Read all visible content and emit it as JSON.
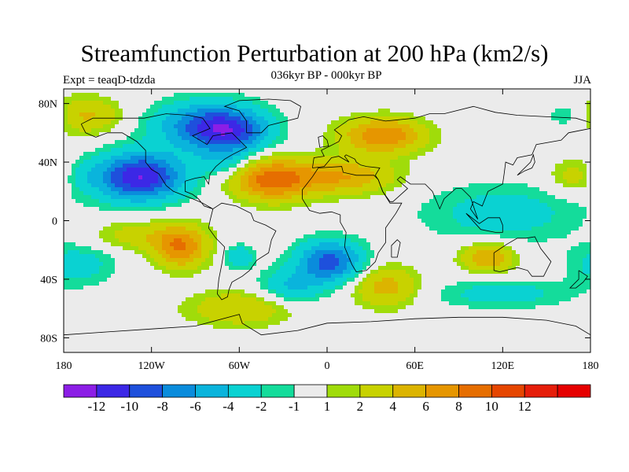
{
  "header": {
    "title": "Streamfunction Perturbation at 200 hPa (km2/s)",
    "subtitle": "036kyr BP - 000kyr BP",
    "left_string": "Expt = teaqD-tdzda",
    "right_string": "JJA"
  },
  "axes": {
    "y_ticks": [
      {
        "label": "80N",
        "lat": 80
      },
      {
        "label": "40N",
        "lat": 40
      },
      {
        "label": "0",
        "lat": 0
      },
      {
        "label": "40S",
        "lat": -40
      },
      {
        "label": "80S",
        "lat": -80
      }
    ],
    "x_ticks": [
      {
        "label": "180",
        "lon": -180
      },
      {
        "label": "120W",
        "lon": -120
      },
      {
        "label": "60W",
        "lon": -60
      },
      {
        "label": "0",
        "lon": 0
      },
      {
        "label": "60E",
        "lon": 60
      },
      {
        "label": "120E",
        "lon": 120
      },
      {
        "label": "180",
        "lon": 180
      }
    ]
  },
  "colorbar": {
    "colors": [
      "#8c1ee6",
      "#3c28e6",
      "#1e50dc",
      "#0a8cdc",
      "#0ab4dc",
      "#0ad2d2",
      "#14dc9b",
      "#ebebeb",
      "#a0dc0a",
      "#c8d200",
      "#dcb400",
      "#e69600",
      "#e66e00",
      "#e64600",
      "#e61e0a",
      "#e60000"
    ],
    "labels": [
      "-12",
      "-10",
      "-8",
      "-6",
      "-4",
      "-2",
      "-1",
      "1",
      "2",
      "4",
      "6",
      "8",
      "10",
      "12"
    ]
  },
  "chart_data": {
    "type": "heatmap",
    "variable": "Streamfunction perturbation at 200 hPa",
    "units": "km2/s",
    "projection": "cylindrical equidistant",
    "lon_range": [
      -180,
      180
    ],
    "lat_range": [
      -90,
      90
    ],
    "contour_levels": [
      -12,
      -10,
      -8,
      -6,
      -4,
      -2,
      -1,
      1,
      2,
      4,
      6,
      8,
      10,
      12
    ],
    "anomaly_centers": [
      {
        "lon": -128,
        "lat": 30,
        "value": -12,
        "rx": 30,
        "ry": 16
      },
      {
        "lon": -82,
        "lat": 65,
        "value": -8,
        "rx": 35,
        "ry": 16
      },
      {
        "lon": -65,
        "lat": 60,
        "value": -6,
        "rx": 25,
        "ry": 14
      },
      {
        "lon": -70,
        "lat": 40,
        "value": -3,
        "rx": 18,
        "ry": 10
      },
      {
        "lon": -38,
        "lat": 28,
        "value": 9,
        "rx": 26,
        "ry": 14
      },
      {
        "lon": 38,
        "lat": 58,
        "value": 8,
        "rx": 28,
        "ry": 12
      },
      {
        "lon": 10,
        "lat": 30,
        "value": 6,
        "rx": 35,
        "ry": 12
      },
      {
        "lon": -168,
        "lat": 72,
        "value": 5,
        "rx": 25,
        "ry": 12
      },
      {
        "lon": -100,
        "lat": -18,
        "value": 8,
        "rx": 18,
        "ry": 14
      },
      {
        "lon": -130,
        "lat": -10,
        "value": 3,
        "rx": 30,
        "ry": 10
      },
      {
        "lon": 40,
        "lat": -45,
        "value": 5,
        "rx": 22,
        "ry": 14
      },
      {
        "lon": 110,
        "lat": -25,
        "value": 6,
        "rx": 18,
        "ry": 10
      },
      {
        "lon": -60,
        "lat": -60,
        "value": 4,
        "rx": 35,
        "ry": 12
      },
      {
        "lon": 2,
        "lat": -28,
        "value": -9,
        "rx": 22,
        "ry": 14
      },
      {
        "lon": -25,
        "lat": -45,
        "value": -4,
        "rx": 22,
        "ry": 12
      },
      {
        "lon": -170,
        "lat": -30,
        "value": -3,
        "rx": 25,
        "ry": 14
      },
      {
        "lon": -60,
        "lat": -25,
        "value": -4,
        "rx": 10,
        "ry": 8
      },
      {
        "lon": 170,
        "lat": 72,
        "value": -3,
        "rx": 20,
        "ry": 10
      },
      {
        "lon": 120,
        "lat": 5,
        "value": -3,
        "rx": 55,
        "ry": 20
      },
      {
        "lon": 120,
        "lat": -50,
        "value": -3,
        "rx": 45,
        "ry": 10
      },
      {
        "lon": 170,
        "lat": 30,
        "value": 3,
        "rx": 18,
        "ry": 12
      },
      {
        "lon": -170,
        "lat": 30,
        "value": -2,
        "rx": 12,
        "ry": 10
      }
    ]
  }
}
